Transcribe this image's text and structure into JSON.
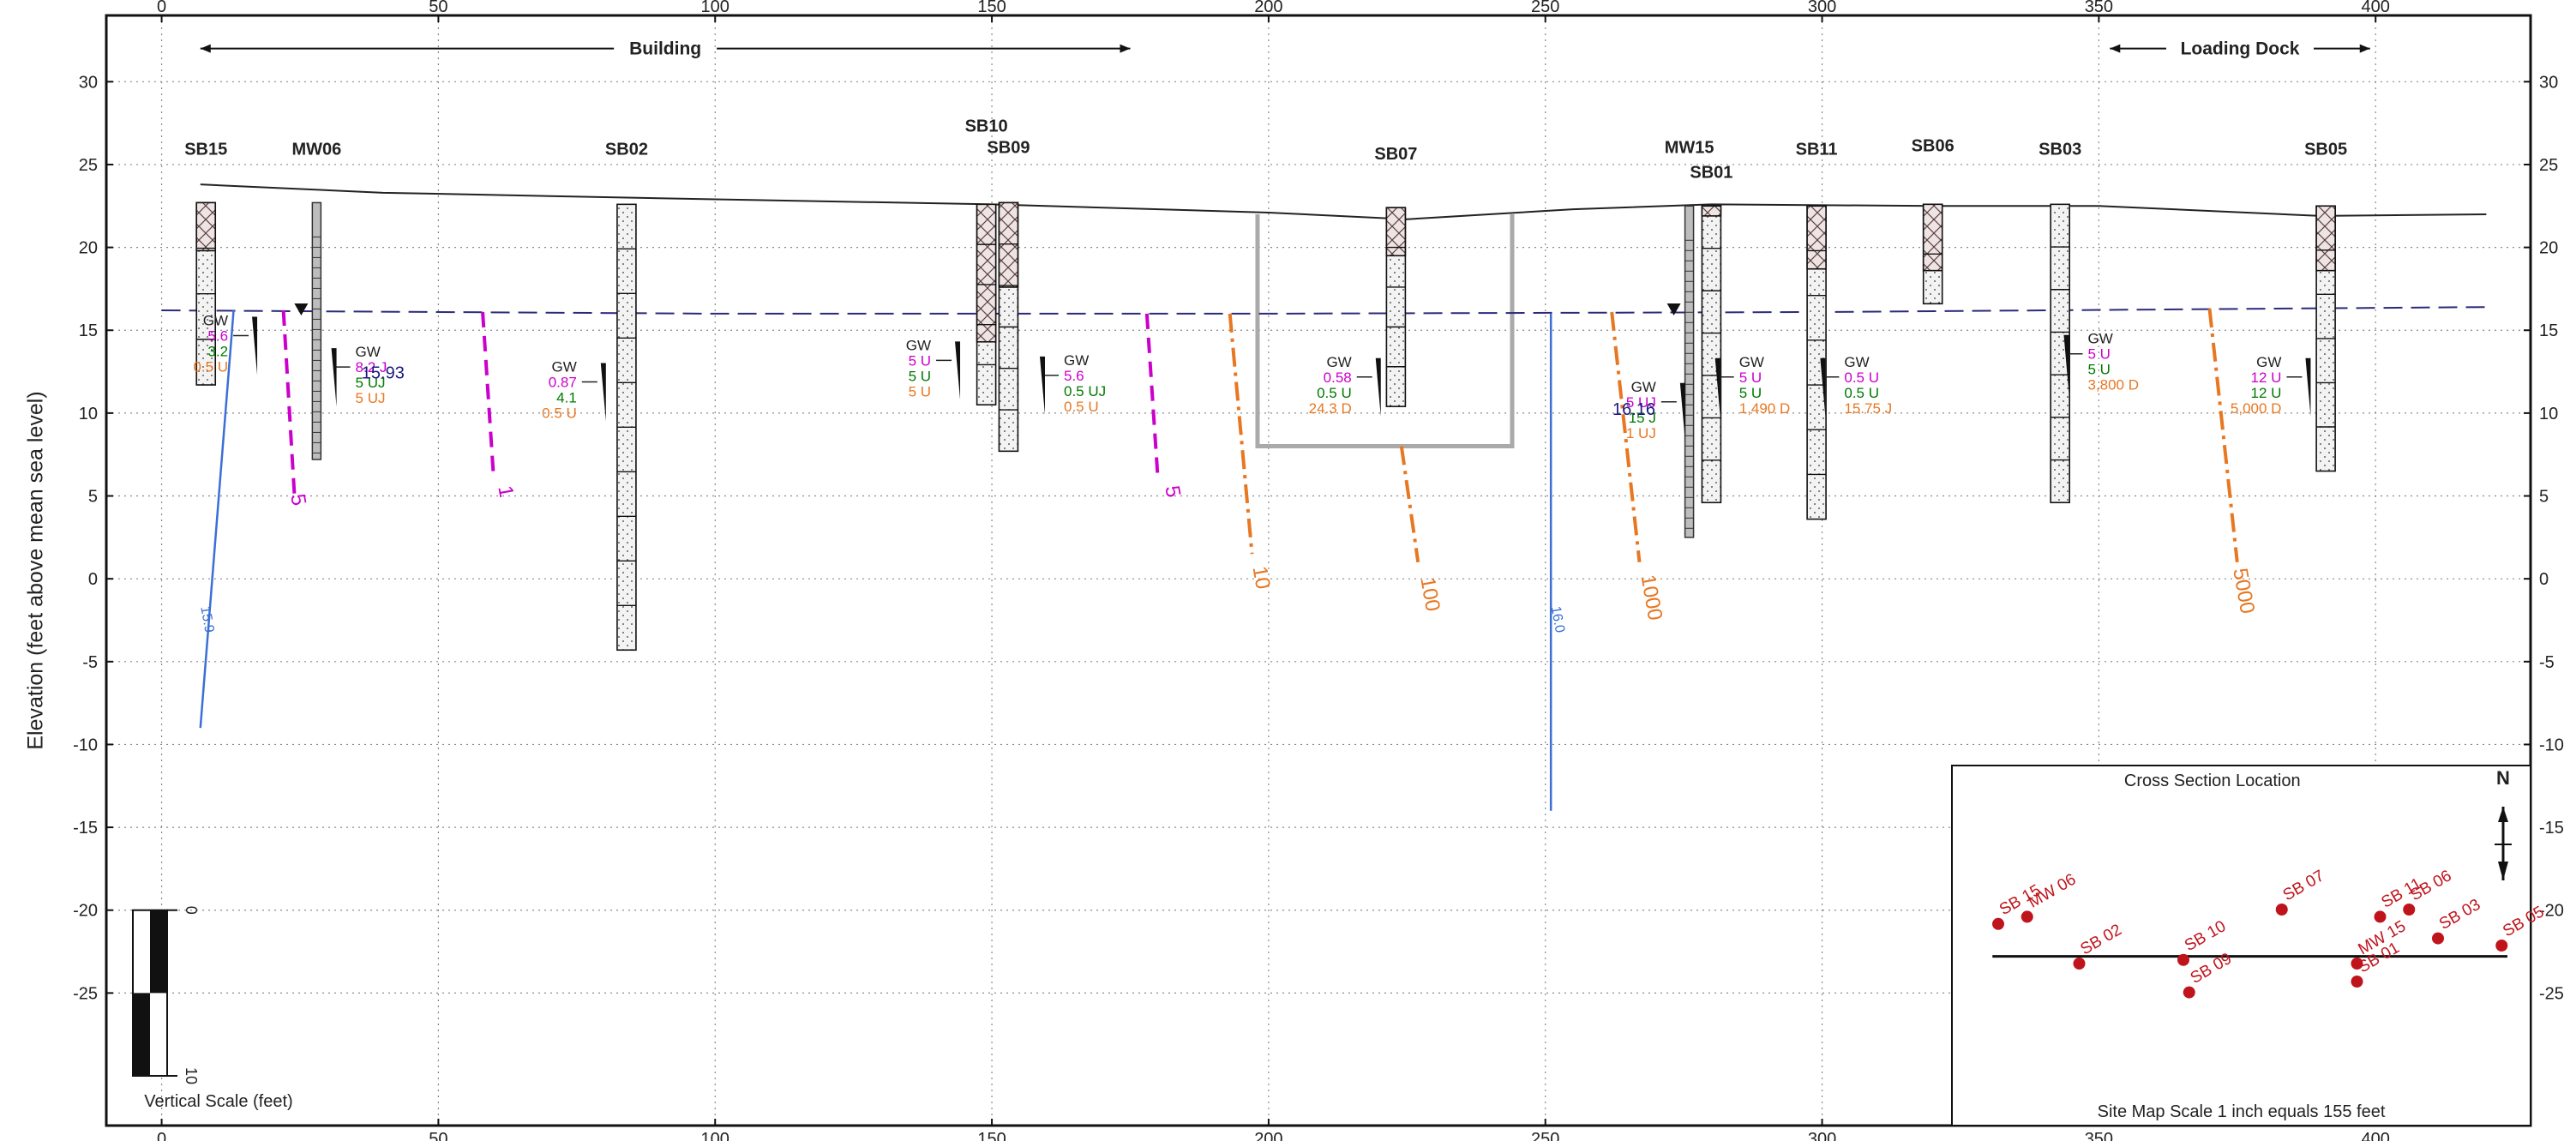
{
  "chart_data": {
    "type": "cross-section",
    "ylabel": "Elevation (feet above mean sea level)",
    "x_ticks": [
      0,
      50,
      100,
      150,
      200,
      250,
      300,
      350,
      400
    ],
    "y_ticks": [
      30,
      25,
      20,
      15,
      10,
      5,
      0,
      -5,
      -10,
      -15,
      -20,
      -25
    ],
    "xlim": [
      -10,
      428
    ],
    "ylim": [
      -33,
      34
    ],
    "grid": true,
    "areas": [
      {
        "label": "Building",
        "from": 7,
        "to": 175
      },
      {
        "label": "Loading Dock",
        "from": 352,
        "to": 399
      }
    ],
    "ground_surface": [
      [
        7,
        23.8
      ],
      [
        40,
        23.3
      ],
      [
        100,
        22.9
      ],
      [
        150,
        22.6
      ],
      [
        200,
        22.1
      ],
      [
        225,
        21.7
      ],
      [
        255,
        22.3
      ],
      [
        280,
        22.6
      ],
      [
        320,
        22.5
      ],
      [
        350,
        22.5
      ],
      [
        390,
        21.9
      ],
      [
        420,
        22.0
      ]
    ],
    "water_table": [
      [
        0,
        16.2
      ],
      [
        100,
        16.0
      ],
      [
        200,
        16.0
      ],
      [
        300,
        16.1
      ],
      [
        420,
        16.4
      ]
    ],
    "borings": [
      {
        "name": "SB15",
        "x": 8,
        "top": 22.7,
        "bottom": 11.7,
        "hatch_to": 19.8,
        "label_el": 25.6
      },
      {
        "name": "MW06",
        "x": 28,
        "top": 22.7,
        "bottom": 7.2,
        "well": true,
        "label_el": 25.6
      },
      {
        "name": "SB02",
        "x": 84,
        "top": 22.6,
        "bottom": -4.3,
        "label_el": 25.6
      },
      {
        "name": "SB10",
        "x": 149,
        "top": 22.6,
        "bottom": 10.5,
        "hatch_to": 14.3,
        "label_el": 27.0
      },
      {
        "name": "SB09",
        "x": 153,
        "top": 22.7,
        "bottom": 7.7,
        "hatch_to": 17.6,
        "label_el": 25.7
      },
      {
        "name": "SB07",
        "x": 223,
        "top": 22.4,
        "bottom": 10.4,
        "hatch_to": 19.5,
        "label_el": 25.3
      },
      {
        "name": "MW15",
        "x": 276,
        "top": 22.5,
        "bottom": 2.5,
        "well": true,
        "label_el": 25.7
      },
      {
        "name": "SB01",
        "x": 280,
        "top": 22.5,
        "bottom": 4.6,
        "hatch_to": 21.9,
        "label_el": 24.2
      },
      {
        "name": "SB11",
        "x": 299,
        "top": 22.5,
        "bottom": 3.6,
        "hatch_to": 18.7,
        "label_el": 25.6
      },
      {
        "name": "SB06",
        "x": 320,
        "top": 22.6,
        "bottom": 16.6,
        "hatch_to": 18.6,
        "label_el": 25.8
      },
      {
        "name": "SB03",
        "x": 343,
        "top": 22.6,
        "bottom": 4.6,
        "label_el": 25.6
      },
      {
        "name": "SB05",
        "x": 391,
        "top": 22.5,
        "bottom": 6.5,
        "hatch_to": 18.6,
        "label_el": 25.6
      }
    ],
    "gw_results": [
      {
        "x": 12,
        "el": 15.3,
        "align": "end",
        "lines": [
          [
            "GW",
            "#222"
          ],
          [
            "5.6",
            "#cc00cc"
          ],
          [
            "3.2",
            "#007a00"
          ],
          [
            "0.5 U",
            "#e87722"
          ]
        ]
      },
      {
        "x": 35,
        "el": 13.4,
        "align": "start",
        "lines": [
          [
            "GW",
            "#222"
          ],
          [
            "8.2 J",
            "#cc00cc"
          ],
          [
            "5 UJ",
            "#007a00"
          ],
          [
            "5 UJ",
            "#e87722"
          ]
        ]
      },
      {
        "x": 75,
        "el": 12.5,
        "align": "end",
        "lines": [
          [
            "GW",
            "#222"
          ],
          [
            "0.87",
            "#cc00cc"
          ],
          [
            "4.1",
            "#007a00"
          ],
          [
            "0.5 U",
            "#e87722"
          ]
        ]
      },
      {
        "x": 139,
        "el": 13.8,
        "align": "end",
        "lines": [
          [
            "GW",
            "#222"
          ],
          [
            "5 U",
            "#cc00cc"
          ],
          [
            "5 U",
            "#007a00"
          ],
          [
            "5 U",
            "#e87722"
          ]
        ]
      },
      {
        "x": 163,
        "el": 12.9,
        "align": "start",
        "lines": [
          [
            "GW",
            "#222"
          ],
          [
            "5.6",
            "#cc00cc"
          ],
          [
            "0.5 UJ",
            "#007a00"
          ],
          [
            "0.5 U",
            "#e87722"
          ]
        ]
      },
      {
        "x": 215,
        "el": 12.8,
        "align": "end",
        "lines": [
          [
            "GW",
            "#222"
          ],
          [
            "0.58",
            "#cc00cc"
          ],
          [
            "0.5 U",
            "#007a00"
          ],
          [
            "24.3 D",
            "#e87722"
          ]
        ]
      },
      {
        "x": 270,
        "el": 11.3,
        "align": "end",
        "lines": [
          [
            "GW",
            "#222"
          ],
          [
            "5 UJ",
            "#cc00cc"
          ],
          [
            "15 J",
            "#007a00"
          ],
          [
            "1 UJ",
            "#e87722"
          ]
        ]
      },
      {
        "x": 285,
        "el": 12.8,
        "align": "start",
        "lines": [
          [
            "GW",
            "#222"
          ],
          [
            "5 U",
            "#cc00cc"
          ],
          [
            "5 U",
            "#007a00"
          ],
          [
            "1,490 D",
            "#e87722"
          ]
        ]
      },
      {
        "x": 304,
        "el": 12.8,
        "align": "start",
        "lines": [
          [
            "GW",
            "#222"
          ],
          [
            "0.5 U",
            "#cc00cc"
          ],
          [
            "0.5 U",
            "#007a00"
          ],
          [
            "15.75 J",
            "#e87722"
          ]
        ]
      },
      {
        "x": 348,
        "el": 14.2,
        "align": "start",
        "lines": [
          [
            "GW",
            "#222"
          ],
          [
            "5 U",
            "#cc00cc"
          ],
          [
            "5 U",
            "#007a00"
          ],
          [
            "3,800 D",
            "#e87722"
          ]
        ]
      },
      {
        "x": 383,
        "el": 12.8,
        "align": "end",
        "lines": [
          [
            "GW",
            "#222"
          ],
          [
            "12 U",
            "#cc00cc"
          ],
          [
            "12 U",
            "#007a00"
          ],
          [
            "5,000 D",
            "#e87722"
          ]
        ]
      }
    ],
    "water_level_labels": [
      {
        "text": "15.93",
        "x": 40,
        "el": 12.1,
        "color": "#1a1a80"
      },
      {
        "text": "16.16",
        "x": 266,
        "el": 9.9,
        "color": "#1a1a80"
      }
    ],
    "isocontours": [
      {
        "label": "15.9",
        "color": "#3b6fd6",
        "style": "solid",
        "points": [
          [
            13,
            16.2
          ],
          [
            7,
            -9
          ]
        ],
        "lab_x": 7.5,
        "lab_el": -2.5
      },
      {
        "label": "16.0",
        "color": "#3b6fd6",
        "style": "solid",
        "points": [
          [
            251,
            16.0
          ],
          [
            251,
            -14
          ]
        ],
        "lab_x": 251.5,
        "lab_el": -2.5
      },
      {
        "label": "5",
        "color": "#cc00cc",
        "style": "dash",
        "points": [
          [
            22,
            16.2
          ],
          [
            24,
            5
          ]
        ],
        "lab_x": 23.5,
        "lab_el": 4.7
      },
      {
        "label": "1",
        "color": "#cc00cc",
        "style": "dash",
        "points": [
          [
            58,
            16.1
          ],
          [
            60,
            6
          ]
        ],
        "lab_x": 61,
        "lab_el": 5.2
      },
      {
        "label": "5",
        "color": "#cc00cc",
        "style": "dash",
        "points": [
          [
            178,
            16.0
          ],
          [
            180,
            6
          ]
        ],
        "lab_x": 181.5,
        "lab_el": 5.2
      },
      {
        "label": "10",
        "color": "#e87722",
        "style": "dashdot",
        "points": [
          [
            193,
            16.0
          ],
          [
            197,
            1.5
          ]
        ],
        "lab_x": 197.5,
        "lab_el": 0
      },
      {
        "label": "100",
        "color": "#e87722",
        "style": "dashdot",
        "points": [
          [
            224,
            8
          ],
          [
            227,
            1
          ]
        ],
        "lab_x": 228,
        "lab_el": -1
      },
      {
        "label": "1000",
        "color": "#e87722",
        "style": "dashdot",
        "points": [
          [
            262,
            16.1
          ],
          [
            267,
            1
          ]
        ],
        "lab_x": 268,
        "lab_el": -1.2
      },
      {
        "label": "5000",
        "color": "#e87722",
        "style": "dashdot",
        "points": [
          [
            370,
            16.3
          ],
          [
            375,
            1
          ]
        ],
        "lab_x": 375,
        "lab_el": -0.8
      }
    ],
    "excavation": {
      "x1": 198,
      "x2": 244,
      "top": 22,
      "bottom": 8
    },
    "vertical_scale": {
      "label": "Vertical Scale (feet)",
      "ticks": [
        "0",
        "10"
      ]
    },
    "inset": {
      "title": "Cross Section Location",
      "caption": "Site Map Scale 1 inch equals 155 feet",
      "north": "N",
      "points": [
        {
          "label": "SB 15",
          "x": 0.08,
          "y": 0.44
        },
        {
          "label": "MW 06",
          "x": 0.13,
          "y": 0.42
        },
        {
          "label": "SB 02",
          "x": 0.22,
          "y": 0.55
        },
        {
          "label": "SB 10",
          "x": 0.4,
          "y": 0.54
        },
        {
          "label": "SB 09",
          "x": 0.41,
          "y": 0.63
        },
        {
          "label": "SB 07",
          "x": 0.57,
          "y": 0.4
        },
        {
          "label": "MW 15",
          "x": 0.7,
          "y": 0.55
        },
        {
          "label": "SB 01",
          "x": 0.7,
          "y": 0.6
        },
        {
          "label": "SB 11",
          "x": 0.74,
          "y": 0.42
        },
        {
          "label": "SB 06",
          "x": 0.79,
          "y": 0.4
        },
        {
          "label": "SB 03",
          "x": 0.84,
          "y": 0.48
        },
        {
          "label": "SB 05",
          "x": 0.95,
          "y": 0.5
        }
      ],
      "section_line": [
        [
          0.07,
          0.53
        ],
        [
          0.96,
          0.53
        ]
      ]
    }
  }
}
